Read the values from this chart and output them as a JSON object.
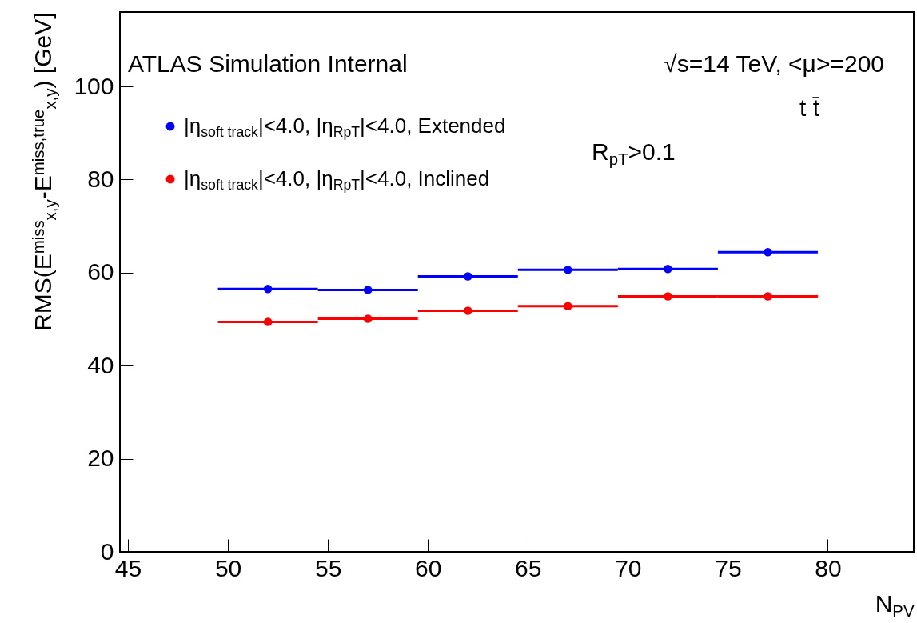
{
  "chart_data": {
    "type": "scatter",
    "xlabel": "N$_{PV}$",
    "ylabel": "RMS(E$^{miss}$$_{x,y}$-E$^{miss,true}$$_{x,y}$) [GeV]",
    "annotations": [
      "ATLAS Simulation Internal",
      "√s=14 TeV, <μ>=200",
      "t t̄",
      "R$_{pT}$>0.1"
    ],
    "x": [
      52,
      57,
      62,
      67,
      72,
      77
    ],
    "series": [
      {
        "name": "|η$_{soft track}$|<4.0, |η$_{R}$$_{pT}$|<4.0, Extended",
        "color": "#0000ff",
        "values": [
          56.5,
          56.3,
          59.2,
          60.6,
          60.8,
          64.4
        ],
        "xerrors": [
          2.5,
          2.5,
          2.5,
          2.5,
          2.5,
          2.5
        ]
      },
      {
        "name": "|η$_{soft track}$|<4.0, |η$_{R}$$_{pT}$|<4.0, Inclined",
        "color": "#ff0000",
        "values": [
          49.4,
          50.1,
          51.8,
          52.8,
          54.9,
          54.9
        ],
        "xerrors": [
          2.5,
          2.5,
          2.5,
          2.5,
          2.5,
          2.5
        ]
      }
    ],
    "xlim": [
      44.6,
      84.3
    ],
    "ylim": [
      0,
      116
    ],
    "xticks": [
      45,
      50,
      55,
      60,
      65,
      70,
      75,
      80
    ],
    "yticks": [
      0,
      20,
      40,
      60,
      80,
      100
    ],
    "grid": false,
    "legend": "top left",
    "marker": "circle"
  }
}
